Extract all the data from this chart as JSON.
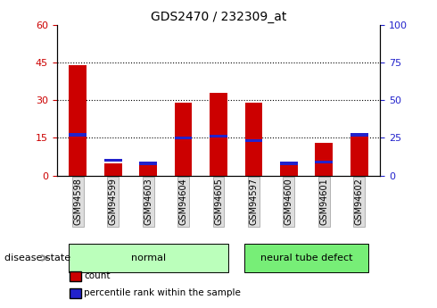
{
  "title": "GDS2470 / 232309_at",
  "samples": [
    "GSM94598",
    "GSM94599",
    "GSM94603",
    "GSM94604",
    "GSM94605",
    "GSM94597",
    "GSM94600",
    "GSM94601",
    "GSM94602"
  ],
  "counts": [
    44,
    5,
    4,
    29,
    33,
    29,
    5,
    13,
    16
  ],
  "percentiles": [
    27,
    10,
    8,
    25,
    26,
    23,
    8,
    9,
    27
  ],
  "groups": [
    {
      "label": "normal",
      "indices": [
        0,
        1,
        2,
        3,
        4
      ]
    },
    {
      "label": "neural tube defect",
      "indices": [
        5,
        6,
        7,
        8
      ]
    }
  ],
  "ylim_left": [
    0,
    60
  ],
  "ylim_right": [
    0,
    100
  ],
  "yticks_left": [
    0,
    15,
    30,
    45,
    60
  ],
  "yticks_right": [
    0,
    25,
    50,
    75,
    100
  ],
  "bar_color_red": "#cc0000",
  "bar_color_blue": "#2222cc",
  "bar_width": 0.5,
  "tick_color_left": "#cc0000",
  "tick_color_right": "#2222cc",
  "group_colors": [
    "#bbffbb",
    "#77ee77"
  ],
  "grid_color": "#000000",
  "legend_count_label": "count",
  "legend_pct_label": "percentile rank within the sample",
  "disease_state_label": "disease state"
}
